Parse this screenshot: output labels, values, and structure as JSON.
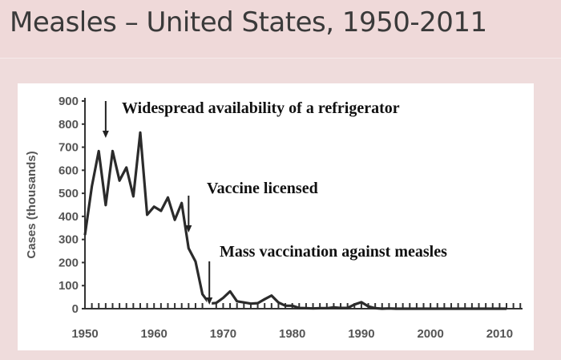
{
  "page": {
    "title": "Measles – United States, 1950-2011"
  },
  "chart_data": {
    "type": "line",
    "title": "",
    "xlabel": "",
    "ylabel": "Cases (thousands)",
    "xlim": [
      1950,
      2011
    ],
    "ylim": [
      0,
      900
    ],
    "x_ticks": [
      1950,
      1960,
      1970,
      1980,
      1990,
      2000,
      2010
    ],
    "y_ticks": [
      0,
      100,
      200,
      300,
      400,
      500,
      600,
      700,
      800,
      900
    ],
    "grid": false,
    "series": [
      {
        "x": [
          1950,
          1951,
          1952,
          1953,
          1954,
          1955,
          1956,
          1957,
          1958,
          1959,
          1960,
          1961,
          1962,
          1963,
          1964,
          1965,
          1966,
          1967,
          1968,
          1969,
          1970,
          1971,
          1972,
          1973,
          1974,
          1975,
          1976,
          1977,
          1978,
          1979,
          1980,
          1981,
          1982,
          1983,
          1984,
          1985,
          1986,
          1987,
          1988,
          1989,
          1990,
          1991,
          1992,
          1993,
          1994,
          1995,
          1996,
          1997,
          1998,
          1999,
          2000,
          2001,
          2002,
          2003,
          2004,
          2005,
          2006,
          2007,
          2008,
          2009,
          2010,
          2011
        ],
        "y": [
          319,
          530,
          683,
          449,
          683,
          555,
          612,
          487,
          763,
          407,
          442,
          424,
          482,
          385,
          458,
          262,
          204,
          63,
          22,
          25,
          47,
          75,
          32,
          27,
          22,
          24,
          41,
          57,
          27,
          13,
          13,
          3,
          2,
          1,
          2,
          2,
          6,
          3,
          3,
          18,
          28,
          10,
          2,
          0,
          1,
          0,
          0,
          0,
          0,
          0,
          0,
          0,
          0,
          0,
          0,
          0,
          0,
          0,
          0,
          0,
          0,
          0
        ]
      }
    ],
    "annotations": [
      {
        "text": "Widespread availability of a refrigerator",
        "x": 1953
      },
      {
        "text": "Vaccine licensed",
        "x": 1965
      },
      {
        "text": "Mass vaccination against measles",
        "x": 1968
      }
    ]
  }
}
